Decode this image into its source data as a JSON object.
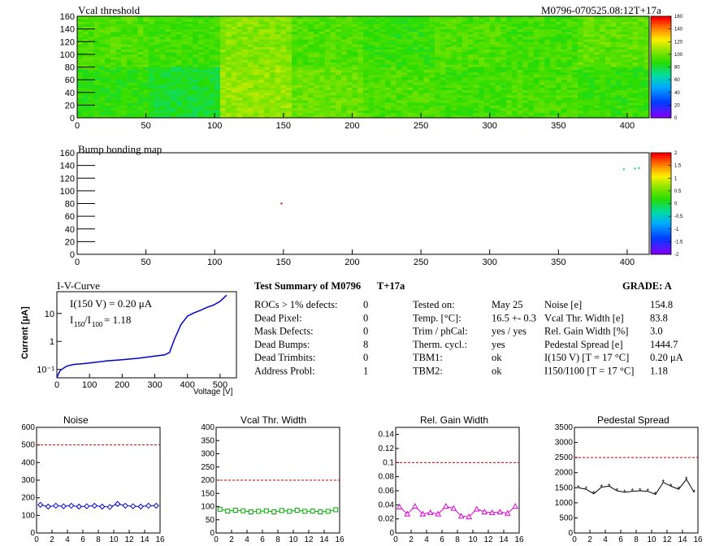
{
  "module_id": "M0796-070525.08:12T+17a",
  "panels": {
    "vcal_title": "Vcal threshold",
    "bump_title": "Bump bonding map",
    "iv_title": "I-V-Curve",
    "iv_ylabel": "Current [μA]",
    "iv_xlabel": "Voltage [V]",
    "iv_annot1": "I(150 V) = 0.20 μA",
    "iv_annot2_main": "I",
    "iv_annot2_sub1": "150",
    "iv_annot2_slash": "/I",
    "iv_annot2_sub2": "100",
    "iv_annot2_val": "= 1.18"
  },
  "summary": {
    "title": "Test Summary of M0796",
    "tag": "T+17a",
    "grade": "GRADE:  A",
    "left": [
      {
        "label": "ROCs > 1% defects:",
        "value": "0"
      },
      {
        "label": "Dead Pixel:",
        "value": "0"
      },
      {
        "label": "Mask Defects:",
        "value": "0"
      },
      {
        "label": "Dead Bumps:",
        "value": "8"
      },
      {
        "label": "Dead Trimbits:",
        "value": "0"
      },
      {
        "label": "Address Probl:",
        "value": "1"
      }
    ],
    "mid": [
      {
        "label": "Tested on:",
        "value": "May 25"
      },
      {
        "label": "Temp. [°C]:",
        "value": "16.5 +- 0.3"
      },
      {
        "label": "Trim / phCal:",
        "value": "yes / yes"
      },
      {
        "label": "Therm. cycl.:",
        "value": "yes"
      },
      {
        "label": "TBM1:",
        "value": "ok"
      },
      {
        "label": "TBM2:",
        "value": "ok"
      }
    ],
    "right": [
      {
        "label": "Noise [e]",
        "value": "154.8"
      },
      {
        "label": "Vcal Thr. Width [e]",
        "value": "83.8"
      },
      {
        "label": "Rel. Gain Width [%]",
        "value": "3.0"
      },
      {
        "label": "Pedestal Spread [e]",
        "value": "1444.7"
      },
      {
        "label": "I(150 V) [T = 17 °C]",
        "value": "0.20 μA"
      },
      {
        "label": "I150/I100  [T = 17 °C]",
        "value": "1.18"
      }
    ]
  },
  "chart_data": [
    {
      "type": "heatmap",
      "title": "Vcal threshold",
      "xlim": [
        0,
        416
      ],
      "ylim": [
        0,
        160
      ],
      "xticks": [
        0,
        50,
        100,
        150,
        200,
        250,
        300,
        350,
        400
      ],
      "yticks": [
        0,
        20,
        40,
        60,
        80,
        100,
        120,
        140,
        160
      ],
      "zlim": [
        0,
        160
      ],
      "zticks": [
        0,
        20,
        40,
        60,
        80,
        100,
        120,
        140,
        160
      ],
      "roc_means": [
        [
          95,
          92,
          105,
          95,
          90,
          95,
          92,
          98
        ],
        [
          88,
          82,
          108,
          100,
          95,
          92,
          94,
          90
        ]
      ]
    },
    {
      "type": "heatmap",
      "title": "Bump bonding map",
      "xlim": [
        0,
        416
      ],
      "ylim": [
        0,
        160
      ],
      "xticks": [
        0,
        50,
        100,
        150,
        200,
        250,
        300,
        350,
        400
      ],
      "yticks": [
        0,
        20,
        40,
        60,
        80,
        100,
        120,
        140,
        160
      ],
      "zlim": [
        -2,
        2
      ],
      "zticks": [
        -2,
        -1.5,
        -1,
        -0.5,
        0,
        0.5,
        1,
        1.5,
        2
      ],
      "points": [
        {
          "x": 148,
          "y": 80,
          "color": "#cc0000"
        },
        {
          "x": 397,
          "y": 134,
          "color": "#00cc99"
        },
        {
          "x": 405,
          "y": 135,
          "color": "#00cc99"
        },
        {
          "x": 408,
          "y": 136,
          "color": "#00cc99"
        }
      ]
    },
    {
      "type": "line",
      "title": "I-V-Curve",
      "xlabel": "Voltage [V]",
      "ylabel": "Current [μA]",
      "xlim": [
        0,
        550
      ],
      "ylog": true,
      "ylim": [
        0.05,
        60
      ],
      "xticks": [
        0,
        100,
        200,
        300,
        400,
        500
      ],
      "yticks": [
        {
          "v": 0.1,
          "label": "10⁻¹"
        },
        {
          "v": 1,
          "label": "1"
        },
        {
          "v": 10,
          "label": "10"
        }
      ],
      "x": [
        0,
        5,
        10,
        20,
        30,
        50,
        80,
        100,
        150,
        200,
        250,
        300,
        330,
        345,
        360,
        380,
        400,
        420,
        440,
        460,
        480,
        500,
        520
      ],
      "y": [
        0.05,
        0.07,
        0.09,
        0.11,
        0.13,
        0.15,
        0.16,
        0.17,
        0.2,
        0.22,
        0.25,
        0.3,
        0.33,
        0.4,
        1.2,
        4.0,
        8.0,
        10.5,
        13.0,
        16.5,
        20.0,
        27.0,
        45.0
      ],
      "color": "#0000cc"
    },
    {
      "type": "line",
      "title": "Noise",
      "xlim": [
        0,
        16
      ],
      "ylim": [
        0,
        600
      ],
      "xticks": [
        0,
        2,
        4,
        6,
        8,
        10,
        12,
        14,
        16
      ],
      "yticks": [
        0,
        100,
        200,
        300,
        400,
        500,
        600
      ],
      "threshold": 500,
      "x": [
        0.5,
        1.5,
        2.5,
        3.5,
        4.5,
        5.5,
        6.5,
        7.5,
        8.5,
        9.5,
        10.5,
        11.5,
        12.5,
        13.5,
        14.5,
        15.5
      ],
      "y": [
        160,
        150,
        155,
        152,
        155,
        150,
        152,
        155,
        150,
        148,
        165,
        155,
        152,
        150,
        155,
        155
      ],
      "color": "#0000cc",
      "marker": "diamond"
    },
    {
      "type": "line",
      "title": "Vcal Thr. Width",
      "xlim": [
        0,
        16
      ],
      "ylim": [
        0,
        400
      ],
      "xticks": [
        0,
        2,
        4,
        6,
        8,
        10,
        12,
        14,
        16
      ],
      "yticks": [
        0,
        50,
        100,
        150,
        200,
        250,
        300,
        350,
        400
      ],
      "threshold": 200,
      "x": [
        0.5,
        1.5,
        2.5,
        3.5,
        4.5,
        5.5,
        6.5,
        7.5,
        8.5,
        9.5,
        10.5,
        11.5,
        12.5,
        13.5,
        14.5,
        15.5
      ],
      "y": [
        90,
        83,
        86,
        84,
        80,
        82,
        84,
        80,
        85,
        82,
        86,
        82,
        83,
        80,
        82,
        88
      ],
      "color": "#00aa00",
      "marker": "square"
    },
    {
      "type": "line",
      "title": "Rel. Gain Width",
      "xlim": [
        0,
        16
      ],
      "ylim": [
        0,
        0.15
      ],
      "xticks": [
        0,
        2,
        4,
        6,
        8,
        10,
        12,
        14,
        16
      ],
      "yticks": [
        0,
        0.02,
        0.04,
        0.06,
        0.08,
        0.1,
        0.12,
        0.14
      ],
      "threshold": 0.1,
      "x": [
        0.5,
        1.5,
        2.5,
        3.5,
        4.5,
        5.5,
        6.5,
        7.5,
        8.5,
        9.5,
        10.5,
        11.5,
        12.5,
        13.5,
        14.5,
        15.5
      ],
      "y": [
        0.037,
        0.027,
        0.038,
        0.027,
        0.029,
        0.027,
        0.038,
        0.035,
        0.024,
        0.023,
        0.034,
        0.03,
        0.029,
        0.03,
        0.028,
        0.038
      ],
      "color": "#dd00dd",
      "marker": "triangle"
    },
    {
      "type": "line",
      "title": "Pedestal Spread",
      "xlim": [
        0,
        16
      ],
      "ylim": [
        0,
        3500
      ],
      "xticks": [
        0,
        2,
        4,
        6,
        8,
        10,
        12,
        14,
        16
      ],
      "yticks": [
        0,
        500,
        1000,
        1500,
        2000,
        2500,
        3000,
        3500
      ],
      "threshold": 2500,
      "x": [
        0.5,
        1.5,
        2.5,
        3.5,
        4.5,
        5.5,
        6.5,
        7.5,
        8.5,
        9.5,
        10.5,
        11.5,
        12.5,
        13.5,
        14.5,
        15.5
      ],
      "y": [
        1500,
        1450,
        1300,
        1520,
        1550,
        1400,
        1350,
        1380,
        1400,
        1380,
        1280,
        1680,
        1550,
        1450,
        1780,
        1350
      ],
      "color": "#000000",
      "marker": "star"
    }
  ]
}
